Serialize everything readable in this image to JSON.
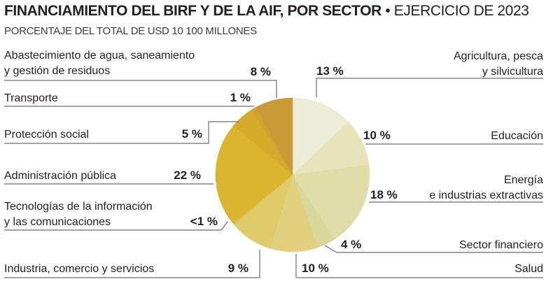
{
  "header": {
    "title_bold": "FINANCIAMIENTO DEL BIRF Y DE LA AIF, POR SECTOR",
    "title_sep": " • ",
    "title_light": "EJERCICIO DE 2023",
    "subtitle": "PORCENTAJE DEL TOTAL DE USD 10 100 MILLONES"
  },
  "chart_data": {
    "type": "pie",
    "title": "FINANCIAMIENTO DEL BIRF Y DE LA AIF, POR SECTOR • EJERCICIO DE 2023",
    "subtitle": "PORCENTAJE DEL TOTAL DE USD 10 100 MILLONES",
    "unit": "%",
    "start": "12 o'clock, clockwise",
    "slices": [
      {
        "name": "Agricultura, pesca y silvicultura",
        "lines": [
          "Agricultura, pesca",
          "y silvicultura"
        ],
        "value": 13,
        "label": "13 %",
        "color": "#ebedd6"
      },
      {
        "name": "Educación",
        "lines": [
          "Educación"
        ],
        "value": 10,
        "label": "10 %",
        "color": "#e7e4bb"
      },
      {
        "name": "Energía e industrias extractivas",
        "lines": [
          "Energía",
          "e industrias extractivas"
        ],
        "value": 18,
        "label": "18 %",
        "color": "#e0dda9"
      },
      {
        "name": "Sector financiero",
        "lines": [
          "Sector financiero"
        ],
        "value": 4,
        "label": "4 %",
        "color": "#d8d89a"
      },
      {
        "name": "Salud",
        "lines": [
          "Salud"
        ],
        "value": 10,
        "label": "10 %",
        "color": "#e1d07d"
      },
      {
        "name": "Industria, comercio y servicios",
        "lines": [
          "Industria, comercio y servicios"
        ],
        "value": 9,
        "label": "9 %",
        "color": "#dfcb6a"
      },
      {
        "name": "Tecnologías de la información y las comunicaciones",
        "lines": [
          "Tecnologías de la información",
          "y las comunicaciones"
        ],
        "value": 0.4,
        "label": "<1 %",
        "color": "#dcc055"
      },
      {
        "name": "Administración pública",
        "lines": [
          "Administración pública"
        ],
        "value": 22,
        "label": "22 %",
        "color": "#dbb52e"
      },
      {
        "name": "Protección social",
        "lines": [
          "Protección social"
        ],
        "value": 5,
        "label": "5 %",
        "color": "#d4ab2a"
      },
      {
        "name": "Transporte",
        "lines": [
          "Transporte"
        ],
        "value": 1,
        "label": "1 %",
        "color": "#cea331"
      },
      {
        "name": "Abastecimiento de agua, saneamiento y gestión de residuos",
        "lines": [
          "Abastecimiento de agua, saneamiento",
          "y gestión de residuos"
        ],
        "value": 8,
        "label": "8 %",
        "color": "#c99a37"
      }
    ]
  }
}
